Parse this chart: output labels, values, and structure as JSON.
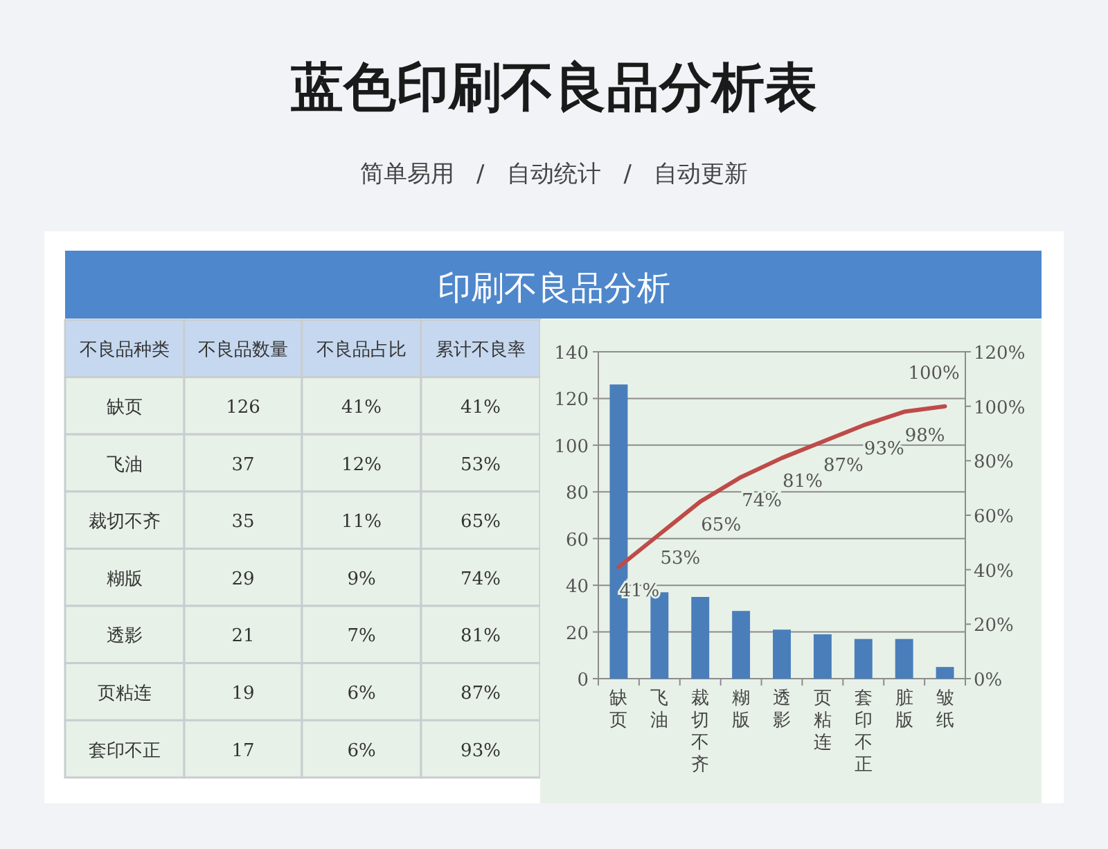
{
  "chart_data": [
    {
      "type": "other",
      "title": "蓝色印刷不良品分析表",
      "subtitle": "简单易用   /   自动统计   /   自动更新",
      "annotations": [
        "印刷不良品分析",
        "不良品种类",
        "不良品数量",
        "不良品占比",
        "累计不良率",
        "缺页",
        "126",
        "41%",
        "41%",
        "飞油",
        "37",
        "12%",
        "53%",
        "裁切不齐",
        "35",
        "11%",
        "65%",
        "糊版",
        "29",
        "9%",
        "74%",
        "透影",
        "21",
        "7%",
        "81%",
        "页粘连",
        "19",
        "6%",
        "87%",
        "套印不正",
        "17",
        "6%",
        "93%"
      ]
    },
    {
      "type": "bar",
      "categories": [
        "缺页",
        "飞油",
        "裁切不齐",
        "糊版",
        "透影",
        "页粘连",
        "套印不正",
        "脏版",
        "皱纸"
      ],
      "series": [
        {
          "type": "bar",
          "color": "#4a7ebb",
          "values": [
            126,
            37,
            35,
            29,
            21,
            19,
            17,
            17,
            5
          ]
        },
        {
          "type": "line",
          "axis": "y2",
          "color": "#be4b48",
          "values": [
            41,
            53,
            65,
            74,
            81,
            87,
            93,
            98,
            100
          ],
          "value_labels": [
            "41%",
            "53%",
            "65%",
            "74%",
            "81%",
            "87%",
            "93%",
            "98%",
            "100%"
          ]
        }
      ],
      "ylim": [
        0,
        140
      ],
      "yticks": [
        0,
        20,
        40,
        60,
        80,
        100,
        120,
        140
      ],
      "y2lim": [
        0,
        120
      ],
      "y2ticks": [
        {
          "value": 0,
          "label": "0%"
        },
        {
          "value": 20,
          "label": "20%"
        },
        {
          "value": 40,
          "label": "40%"
        },
        {
          "value": 60,
          "label": "60%"
        },
        {
          "value": 80,
          "label": "80%"
        },
        {
          "value": 100,
          "label": "100%"
        },
        {
          "value": 120,
          "label": "120%"
        }
      ],
      "grid": "y",
      "marker": "none"
    }
  ]
}
